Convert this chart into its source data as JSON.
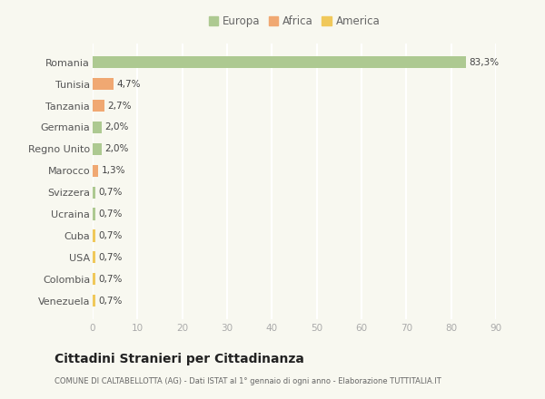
{
  "categories": [
    "Romania",
    "Tunisia",
    "Tanzania",
    "Germania",
    "Regno Unito",
    "Marocco",
    "Svizzera",
    "Ucraina",
    "Cuba",
    "USA",
    "Colombia",
    "Venezuela"
  ],
  "values": [
    83.3,
    4.7,
    2.7,
    2.0,
    2.0,
    1.3,
    0.7,
    0.7,
    0.7,
    0.7,
    0.7,
    0.7
  ],
  "labels": [
    "83,3%",
    "4,7%",
    "2,7%",
    "2,0%",
    "2,0%",
    "1,3%",
    "0,7%",
    "0,7%",
    "0,7%",
    "0,7%",
    "0,7%",
    "0,7%"
  ],
  "colors": [
    "#adc991",
    "#f0a872",
    "#f0a872",
    "#adc991",
    "#adc991",
    "#f0a872",
    "#adc991",
    "#adc991",
    "#f0c85a",
    "#f0c85a",
    "#f0c85a",
    "#f0c85a"
  ],
  "legend_labels": [
    "Europa",
    "Africa",
    "America"
  ],
  "legend_colors": [
    "#adc991",
    "#f0a872",
    "#f0c85a"
  ],
  "title": "Cittadini Stranieri per Cittadinanza",
  "subtitle": "COMUNE DI CALTABELLOTTA (AG) - Dati ISTAT al 1° gennaio di ogni anno - Elaborazione TUTTITALIA.IT",
  "xlim": [
    0,
    90
  ],
  "xticks": [
    0,
    10,
    20,
    30,
    40,
    50,
    60,
    70,
    80,
    90
  ],
  "background_color": "#f8f8f0",
  "grid_color": "#ffffff",
  "bar_height": 0.55
}
